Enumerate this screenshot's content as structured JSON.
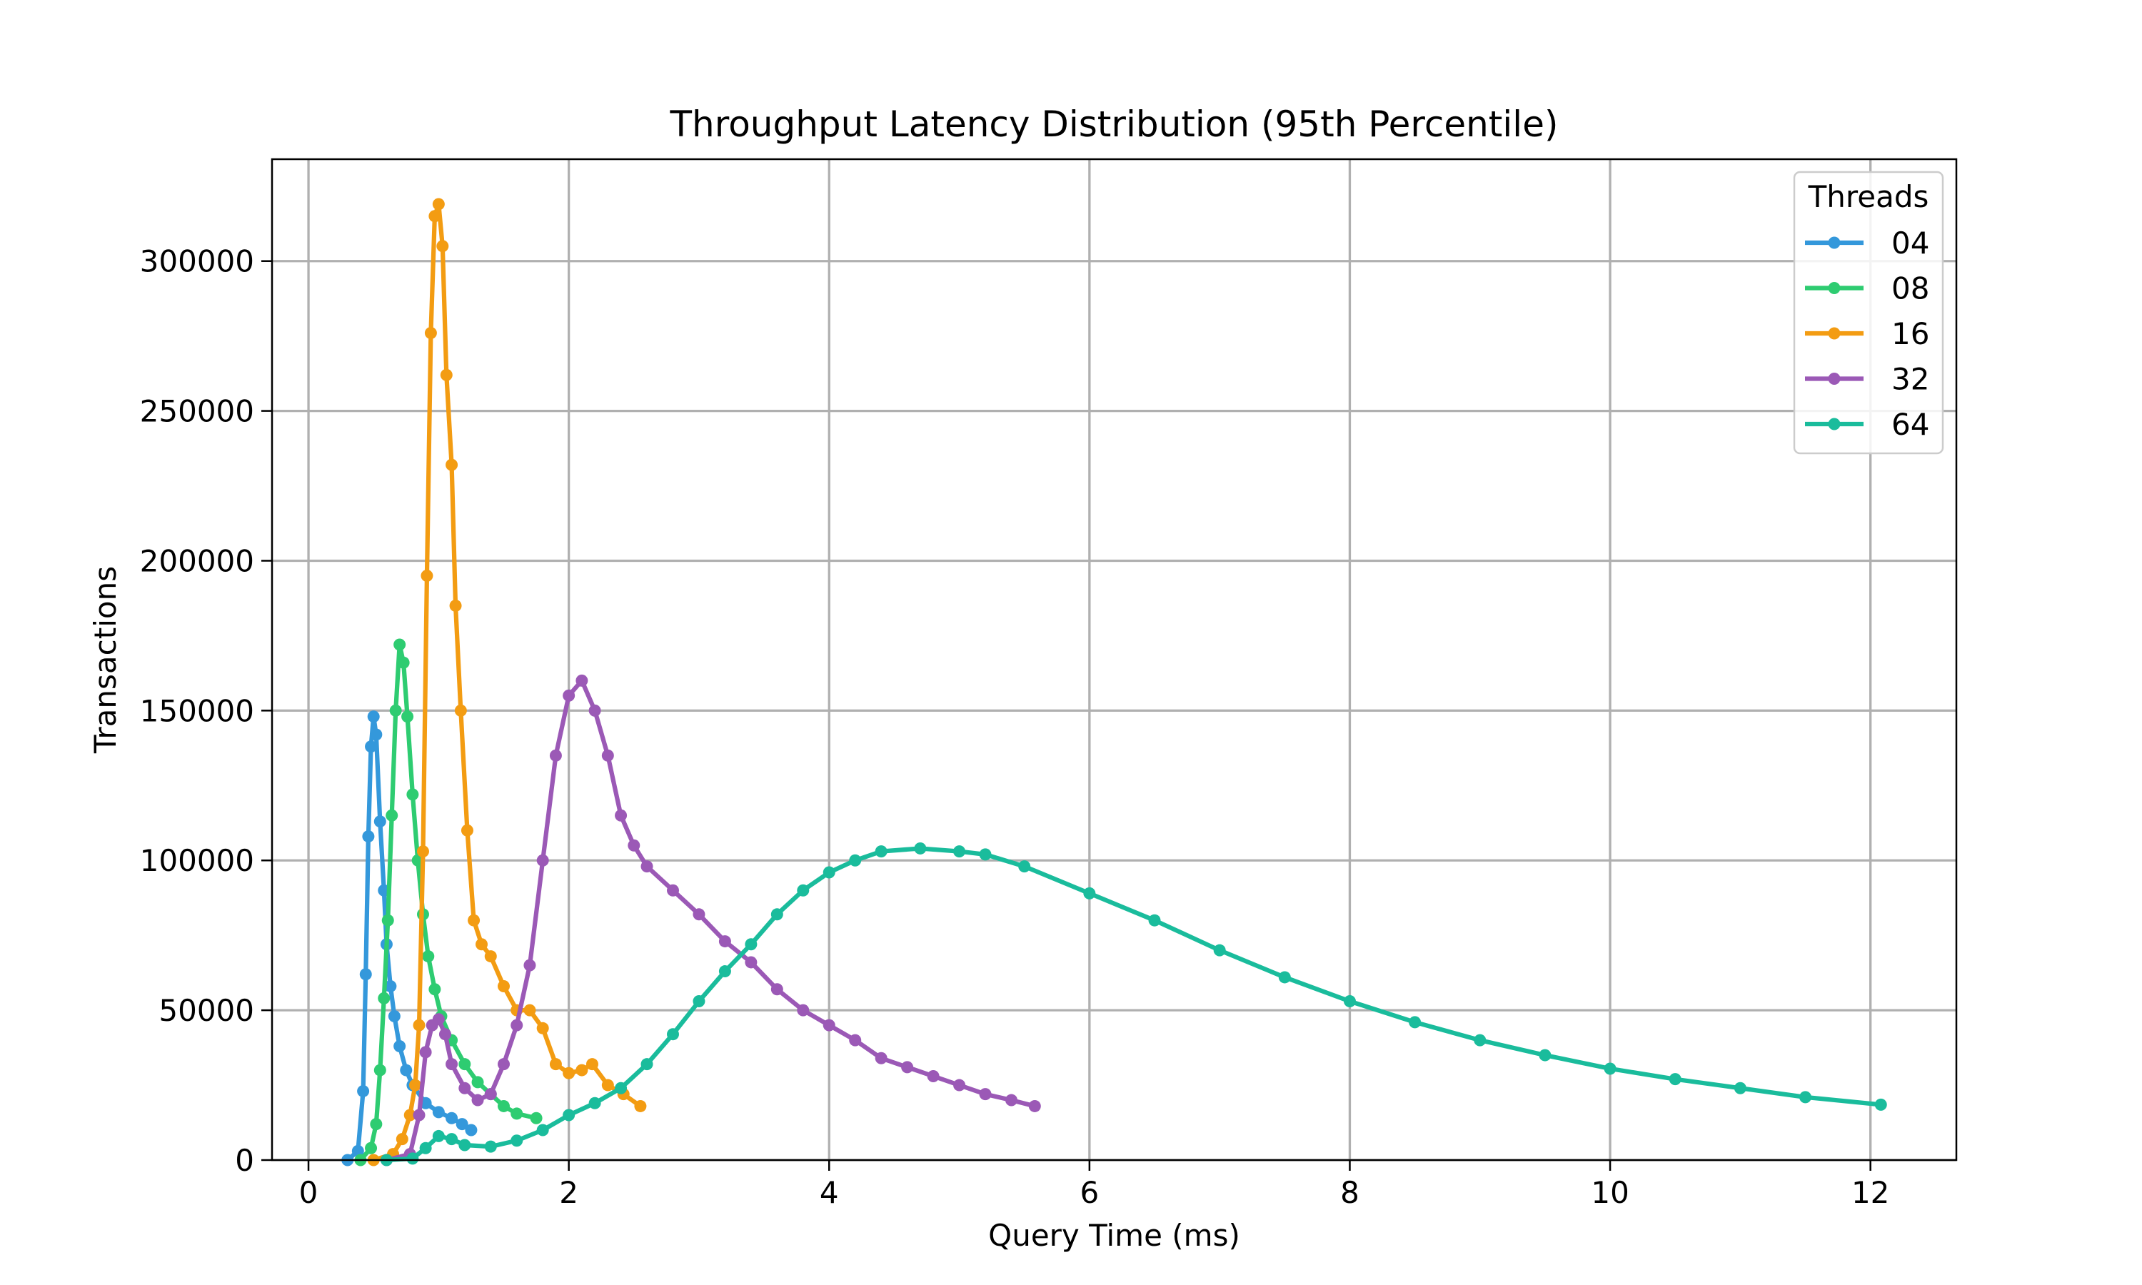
{
  "chart_data": {
    "type": "line",
    "title": "Throughput Latency Distribution (95th Percentile)",
    "xlabel": "Query Time (ms)",
    "ylabel": "Transactions",
    "xlim": [
      -0.28,
      12.66
    ],
    "ylim": [
      0,
      334000
    ],
    "xticks": [
      0,
      2,
      4,
      6,
      8,
      10,
      12
    ],
    "yticks": [
      0,
      50000,
      100000,
      150000,
      200000,
      250000,
      300000
    ],
    "grid": true,
    "legend": {
      "title": "Threads",
      "placement": "top-right"
    },
    "series": [
      {
        "name": "04",
        "color": "#3498db",
        "points": [
          [
            0.3,
            0
          ],
          [
            0.38,
            3000
          ],
          [
            0.42,
            23000
          ],
          [
            0.44,
            62000
          ],
          [
            0.46,
            108000
          ],
          [
            0.48,
            138000
          ],
          [
            0.5,
            148000
          ],
          [
            0.52,
            142000
          ],
          [
            0.55,
            113000
          ],
          [
            0.58,
            90000
          ],
          [
            0.6,
            72000
          ],
          [
            0.63,
            58000
          ],
          [
            0.66,
            48000
          ],
          [
            0.7,
            38000
          ],
          [
            0.75,
            30000
          ],
          [
            0.8,
            25000
          ],
          [
            0.9,
            19000
          ],
          [
            1.0,
            16000
          ],
          [
            1.1,
            14000
          ],
          [
            1.18,
            12000
          ],
          [
            1.25,
            10000
          ]
        ]
      },
      {
        "name": "08",
        "color": "#2ecc71",
        "points": [
          [
            0.4,
            0
          ],
          [
            0.48,
            4000
          ],
          [
            0.52,
            12000
          ],
          [
            0.55,
            30000
          ],
          [
            0.58,
            54000
          ],
          [
            0.61,
            80000
          ],
          [
            0.64,
            115000
          ],
          [
            0.67,
            150000
          ],
          [
            0.7,
            172000
          ],
          [
            0.73,
            166000
          ],
          [
            0.76,
            148000
          ],
          [
            0.8,
            122000
          ],
          [
            0.84,
            100000
          ],
          [
            0.88,
            82000
          ],
          [
            0.92,
            68000
          ],
          [
            0.97,
            57000
          ],
          [
            1.02,
            48000
          ],
          [
            1.1,
            40000
          ],
          [
            1.2,
            32000
          ],
          [
            1.3,
            26000
          ],
          [
            1.4,
            22000
          ],
          [
            1.5,
            18000
          ],
          [
            1.6,
            15500
          ],
          [
            1.75,
            14000
          ]
        ]
      },
      {
        "name": "16",
        "color": "#f39c12",
        "points": [
          [
            0.5,
            0
          ],
          [
            0.65,
            2000
          ],
          [
            0.72,
            7000
          ],
          [
            0.78,
            15000
          ],
          [
            0.82,
            25000
          ],
          [
            0.85,
            45000
          ],
          [
            0.88,
            103000
          ],
          [
            0.91,
            195000
          ],
          [
            0.94,
            276000
          ],
          [
            0.97,
            315000
          ],
          [
            1.0,
            319000
          ],
          [
            1.03,
            305000
          ],
          [
            1.06,
            262000
          ],
          [
            1.1,
            232000
          ],
          [
            1.13,
            185000
          ],
          [
            1.17,
            150000
          ],
          [
            1.22,
            110000
          ],
          [
            1.27,
            80000
          ],
          [
            1.33,
            72000
          ],
          [
            1.4,
            68000
          ],
          [
            1.5,
            58000
          ],
          [
            1.6,
            50000
          ],
          [
            1.7,
            50000
          ],
          [
            1.8,
            44000
          ],
          [
            1.9,
            32000
          ],
          [
            2.0,
            29000
          ],
          [
            2.1,
            30000
          ],
          [
            2.18,
            32000
          ],
          [
            2.3,
            25000
          ],
          [
            2.42,
            22000
          ],
          [
            2.55,
            18000
          ]
        ]
      },
      {
        "name": "32",
        "color": "#9b59b6",
        "points": [
          [
            0.6,
            0
          ],
          [
            0.78,
            2000
          ],
          [
            0.85,
            15000
          ],
          [
            0.9,
            36000
          ],
          [
            0.95,
            45000
          ],
          [
            1.0,
            47000
          ],
          [
            1.05,
            42000
          ],
          [
            1.1,
            32000
          ],
          [
            1.2,
            24000
          ],
          [
            1.3,
            20000
          ],
          [
            1.4,
            22000
          ],
          [
            1.5,
            32000
          ],
          [
            1.6,
            45000
          ],
          [
            1.7,
            65000
          ],
          [
            1.8,
            100000
          ],
          [
            1.9,
            135000
          ],
          [
            2.0,
            155000
          ],
          [
            2.1,
            160000
          ],
          [
            2.2,
            150000
          ],
          [
            2.3,
            135000
          ],
          [
            2.4,
            115000
          ],
          [
            2.5,
            105000
          ],
          [
            2.6,
            98000
          ],
          [
            2.8,
            90000
          ],
          [
            3.0,
            82000
          ],
          [
            3.2,
            73000
          ],
          [
            3.4,
            66000
          ],
          [
            3.6,
            57000
          ],
          [
            3.8,
            50000
          ],
          [
            4.0,
            45000
          ],
          [
            4.2,
            40000
          ],
          [
            4.4,
            34000
          ],
          [
            4.6,
            31000
          ],
          [
            4.8,
            28000
          ],
          [
            5.0,
            25000
          ],
          [
            5.2,
            22000
          ],
          [
            5.4,
            20000
          ],
          [
            5.58,
            18000
          ]
        ]
      },
      {
        "name": "64",
        "color": "#1abc9c",
        "points": [
          [
            0.6,
            0
          ],
          [
            0.8,
            500
          ],
          [
            0.9,
            4000
          ],
          [
            1.0,
            8000
          ],
          [
            1.1,
            7000
          ],
          [
            1.2,
            5000
          ],
          [
            1.4,
            4500
          ],
          [
            1.6,
            6500
          ],
          [
            1.8,
            10000
          ],
          [
            2.0,
            15000
          ],
          [
            2.2,
            19000
          ],
          [
            2.4,
            24000
          ],
          [
            2.6,
            32000
          ],
          [
            2.8,
            42000
          ],
          [
            3.0,
            53000
          ],
          [
            3.2,
            63000
          ],
          [
            3.4,
            72000
          ],
          [
            3.6,
            82000
          ],
          [
            3.8,
            90000
          ],
          [
            4.0,
            96000
          ],
          [
            4.2,
            100000
          ],
          [
            4.4,
            103000
          ],
          [
            4.7,
            104000
          ],
          [
            5.0,
            103000
          ],
          [
            5.2,
            102000
          ],
          [
            5.5,
            98000
          ],
          [
            6.0,
            89000
          ],
          [
            6.5,
            80000
          ],
          [
            7.0,
            70000
          ],
          [
            7.5,
            61000
          ],
          [
            8.0,
            53000
          ],
          [
            8.5,
            46000
          ],
          [
            9.0,
            40000
          ],
          [
            9.5,
            35000
          ],
          [
            10.0,
            30500
          ],
          [
            10.5,
            27000
          ],
          [
            11.0,
            24000
          ],
          [
            11.5,
            21000
          ],
          [
            12.08,
            18500
          ]
        ]
      }
    ]
  }
}
